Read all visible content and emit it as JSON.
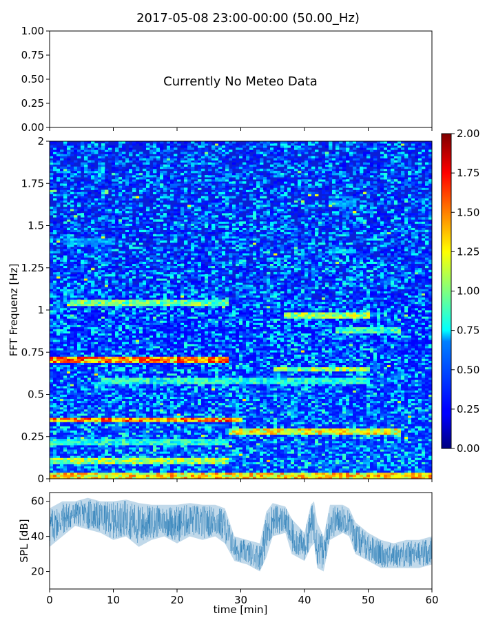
{
  "title": "2017-05-08 23:00-00:00 (50.00_Hz)",
  "chart_data": [
    {
      "type": "line",
      "panel": "meteo",
      "annotation": "Currently No Meteo Data",
      "ylim": [
        0,
        1
      ],
      "y_ticks": [
        "0.00",
        "0.25",
        "0.50",
        "0.75",
        "1.00"
      ],
      "xlim": [
        0,
        60
      ],
      "x_ticks_labeled": false,
      "series": []
    },
    {
      "type": "heatmap",
      "panel": "spectrogram",
      "ylabel": "FFT Frequenz [Hz]",
      "xlim": [
        0,
        60
      ],
      "ylim": [
        0,
        2
      ],
      "y_ticks": [
        "0",
        "0.25",
        "0.5",
        "0.75",
        "1",
        "1.25",
        "1.5",
        "1.75",
        "2"
      ],
      "colormap": "jet",
      "colorbar": {
        "range": [
          0,
          2
        ],
        "ticks": [
          "0.00",
          "0.25",
          "0.50",
          "0.75",
          "1.00",
          "1.25",
          "1.50",
          "1.75",
          "2.00"
        ]
      },
      "bands": [
        {
          "freq": 0.02,
          "t_start": 0,
          "t_end": 60,
          "value": 1.6
        },
        {
          "freq": 0.11,
          "t_start": 0,
          "t_end": 28,
          "value": 1.3
        },
        {
          "freq": 0.22,
          "t_start": 0,
          "t_end": 28,
          "value": 1.0
        },
        {
          "freq": 0.28,
          "t_start": 28,
          "t_end": 55,
          "value": 1.5
        },
        {
          "freq": 0.35,
          "t_start": 0,
          "t_end": 30,
          "value": 1.8
        },
        {
          "freq": 0.58,
          "t_start": 8,
          "t_end": 50,
          "value": 1.0
        },
        {
          "freq": 0.65,
          "t_start": 35,
          "t_end": 50,
          "value": 1.3
        },
        {
          "freq": 0.71,
          "t_start": 0,
          "t_end": 28,
          "value": 1.8
        },
        {
          "freq": 0.88,
          "t_start": 45,
          "t_end": 55,
          "value": 1.1
        },
        {
          "freq": 0.97,
          "t_start": 37,
          "t_end": 50,
          "value": 1.3
        },
        {
          "freq": 1.04,
          "t_start": 3,
          "t_end": 28,
          "value": 1.2
        },
        {
          "freq": 1.35,
          "t_start": 44,
          "t_end": 48,
          "value": 0.8
        },
        {
          "freq": 1.41,
          "t_start": 2,
          "t_end": 10,
          "value": 0.7
        },
        {
          "freq": 1.63,
          "t_start": 44,
          "t_end": 48,
          "value": 0.7
        }
      ]
    },
    {
      "type": "area",
      "panel": "spl",
      "ylabel": "SPL [dB]",
      "xlabel": "time [min]",
      "xlim": [
        0,
        60
      ],
      "ylim": [
        10,
        65
      ],
      "y_ticks": [
        "20",
        "40",
        "60"
      ],
      "x_ticks": [
        "0",
        "10",
        "20",
        "30",
        "40",
        "50",
        "60"
      ],
      "color": "#1f77b4",
      "series": [
        {
          "x": [
            0,
            2,
            4,
            6,
            8,
            10,
            12,
            14,
            16,
            18,
            20,
            22,
            24,
            26,
            27.5,
            29,
            31,
            33,
            34,
            35,
            37,
            38,
            40,
            41,
            41.5,
            42,
            43,
            44,
            46,
            47,
            48,
            50,
            52,
            54,
            56,
            58,
            60
          ],
          "low": [
            34,
            40,
            46,
            44,
            42,
            38,
            40,
            34,
            38,
            40,
            36,
            40,
            38,
            40,
            36,
            26,
            24,
            20,
            28,
            40,
            42,
            30,
            26,
            34,
            36,
            22,
            20,
            38,
            42,
            40,
            30,
            26,
            22,
            22,
            22,
            22,
            24
          ],
          "high": [
            56,
            60,
            60,
            62,
            60,
            60,
            61,
            59,
            58,
            58,
            58,
            59,
            58,
            58,
            56,
            40,
            38,
            36,
            54,
            59,
            57,
            50,
            42,
            58,
            60,
            48,
            40,
            58,
            58,
            56,
            48,
            42,
            38,
            36,
            38,
            38,
            40
          ]
        }
      ]
    }
  ]
}
